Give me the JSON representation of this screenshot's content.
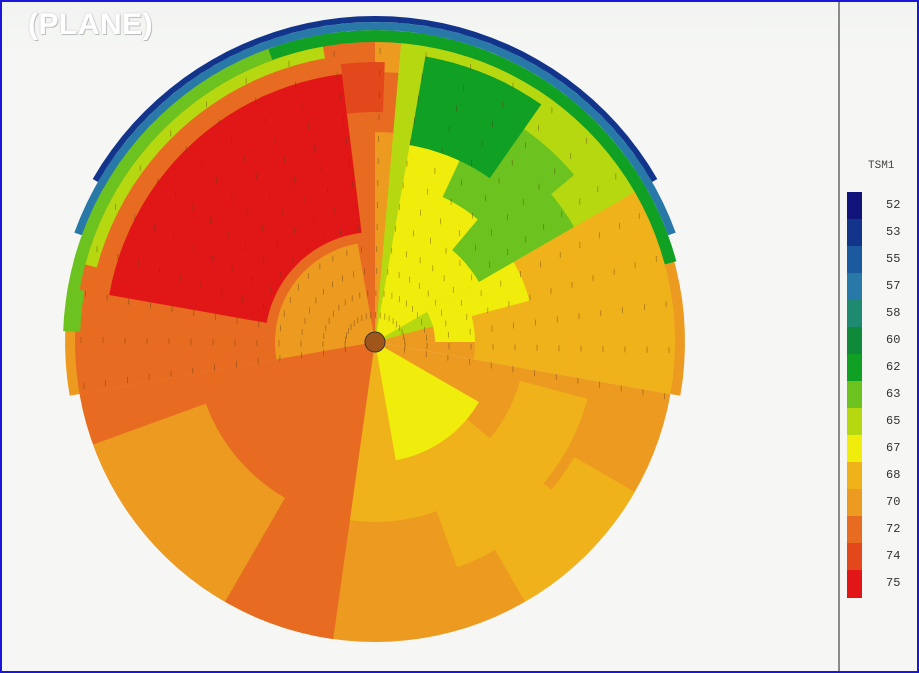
{
  "header": {
    "title": "(PLANE)"
  },
  "legend": {
    "title": "TSM1",
    "entries": [
      {
        "label": "52",
        "color": "#11147a"
      },
      {
        "label": "53",
        "color": "#12348a"
      },
      {
        "label": "55",
        "color": "#1c5a9e"
      },
      {
        "label": "57",
        "color": "#2878a8"
      },
      {
        "label": "58",
        "color": "#1f8a70"
      },
      {
        "label": "60",
        "color": "#0f8a3a"
      },
      {
        "label": "62",
        "color": "#10a024"
      },
      {
        "label": "63",
        "color": "#6cc21e"
      },
      {
        "label": "65",
        "color": "#b6d810"
      },
      {
        "label": "67",
        "color": "#f0ec0c"
      },
      {
        "label": "68",
        "color": "#f0b21a"
      },
      {
        "label": "70",
        "color": "#ec9a20"
      },
      {
        "label": "72",
        "color": "#e76b20"
      },
      {
        "label": "74",
        "color": "#e2481c"
      },
      {
        "label": "75",
        "color": "#e11717"
      }
    ]
  }
}
